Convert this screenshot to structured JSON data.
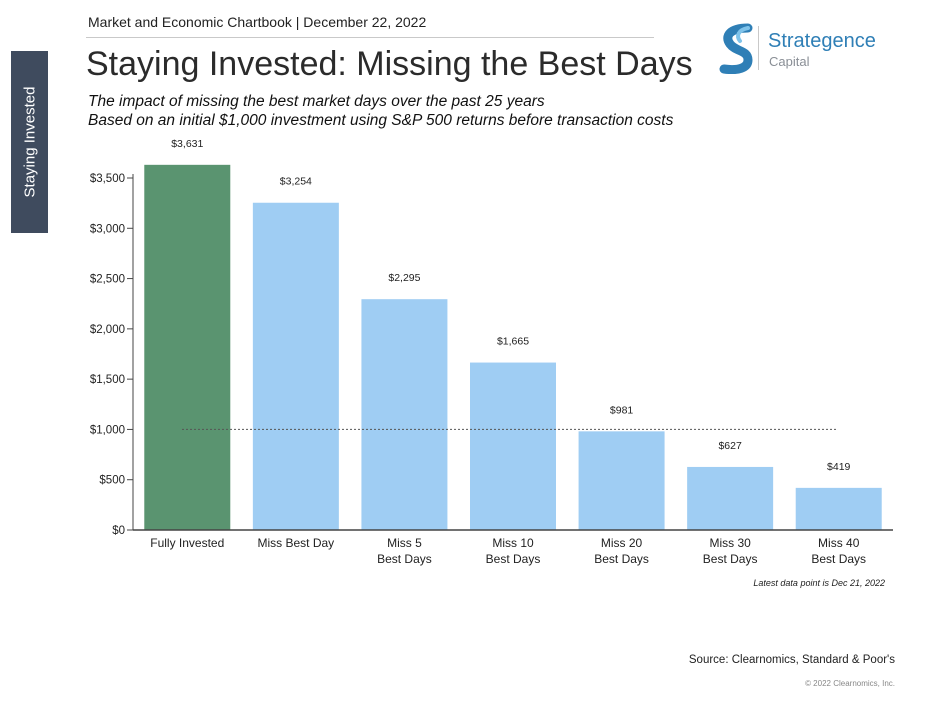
{
  "side_tab": {
    "label": "Staying Invested"
  },
  "header": {
    "chartbook": "Market and Economic Chartbook | December 22, 2022",
    "title": "Staying Invested: Missing the Best Days",
    "subtitle_1": "The impact of missing the best market days over the past 25 years",
    "subtitle_2": "Based on an initial $1,000 investment using S&P 500 returns before transaction costs"
  },
  "logo": {
    "name": "Strategence",
    "sub": "Capital",
    "icon": "s-swoosh-logo-icon",
    "color": "#2f7fb6"
  },
  "colors": {
    "highlight_bar": "#5a9470",
    "bar": "#9fcdf3",
    "axis": "#444444",
    "reference_line": "#555555"
  },
  "chart_data": {
    "type": "bar",
    "categories": [
      [
        "Fully Invested"
      ],
      [
        "Miss Best Day"
      ],
      [
        "Miss 5",
        "Best Days"
      ],
      [
        "Miss 10",
        "Best Days"
      ],
      [
        "Miss 20",
        "Best Days"
      ],
      [
        "Miss 30",
        "Best Days"
      ],
      [
        "Miss 40",
        "Best Days"
      ]
    ],
    "values": [
      3631,
      3254,
      2295,
      1665,
      981,
      627,
      419
    ],
    "value_labels": [
      "$3,631",
      "$3,254",
      "$2,295",
      "$1,665",
      "$981",
      "$627",
      "$419"
    ],
    "highlight_index": 0,
    "ylim": [
      0,
      3500
    ],
    "yticks": [
      0,
      500,
      1000,
      1500,
      2000,
      2500,
      3000,
      3500
    ],
    "ytick_labels": [
      "$0",
      "$500",
      "$1,000",
      "$1,500",
      "$2,000",
      "$2,500",
      "$3,000",
      "$3,500"
    ],
    "reference_line": 1000,
    "grid": false,
    "legend": "none"
  },
  "footnote": "Latest data point is Dec 21, 2022",
  "source": "Source: Clearnomics, Standard & Poor's",
  "copyright": "© 2022 Clearnomics, Inc."
}
